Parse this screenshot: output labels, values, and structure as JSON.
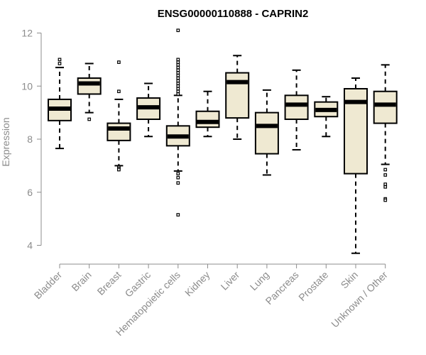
{
  "chart_data": {
    "type": "boxplot",
    "title": "ENSG00000110888 - CAPRIN2",
    "xlabel": "",
    "ylabel": "Expression",
    "ylim": [
      3.6,
      12.3
    ],
    "yticks": [
      4,
      6,
      8,
      10,
      12
    ],
    "categories": [
      "Bladder",
      "Brain",
      "Breast",
      "Gastric",
      "Hematopoietic cells",
      "Kidney",
      "Liver",
      "Lung",
      "Pancreas",
      "Prostate",
      "Skin",
      "Unknown / Other"
    ],
    "boxes": [
      {
        "category": "Bladder",
        "whisker_low": 7.65,
        "q1": 8.7,
        "median": 9.15,
        "q3": 9.5,
        "whisker_high": 10.7,
        "outliers": [
          10.85,
          11.0
        ]
      },
      {
        "category": "Brain",
        "whisker_low": 9.0,
        "q1": 9.7,
        "median": 10.1,
        "q3": 10.3,
        "whisker_high": 10.85,
        "outliers": [
          8.75
        ]
      },
      {
        "category": "Breast",
        "whisker_low": 7.0,
        "q1": 7.95,
        "median": 8.4,
        "q3": 8.6,
        "whisker_high": 9.5,
        "outliers": [
          10.9,
          9.8,
          6.95,
          6.9,
          6.85
        ]
      },
      {
        "category": "Gastric",
        "whisker_low": 8.1,
        "q1": 8.75,
        "median": 9.2,
        "q3": 9.55,
        "whisker_high": 10.1,
        "outliers": []
      },
      {
        "category": "Hematopoietic cells",
        "whisker_low": 6.8,
        "q1": 7.75,
        "median": 8.1,
        "q3": 8.5,
        "whisker_high": 9.65,
        "outliers": [
          12.1,
          11.0,
          10.9,
          10.8,
          10.7,
          10.6,
          10.5,
          10.4,
          10.3,
          10.2,
          10.1,
          10.0,
          9.9,
          9.8,
          9.7,
          6.7,
          6.55,
          6.35,
          5.15
        ]
      },
      {
        "category": "Kidney",
        "whisker_low": 8.1,
        "q1": 8.45,
        "median": 8.65,
        "q3": 9.05,
        "whisker_high": 9.8,
        "outliers": []
      },
      {
        "category": "Liver",
        "whisker_low": 8.0,
        "q1": 8.8,
        "median": 10.15,
        "q3": 10.5,
        "whisker_high": 11.15,
        "outliers": []
      },
      {
        "category": "Lung",
        "whisker_low": 6.65,
        "q1": 7.45,
        "median": 8.5,
        "q3": 9.0,
        "whisker_high": 9.85,
        "outliers": []
      },
      {
        "category": "Pancreas",
        "whisker_low": 7.6,
        "q1": 8.75,
        "median": 9.3,
        "q3": 9.65,
        "whisker_high": 10.6,
        "outliers": []
      },
      {
        "category": "Prostate",
        "whisker_low": 8.1,
        "q1": 8.85,
        "median": 9.1,
        "q3": 9.4,
        "whisker_high": 9.6,
        "outliers": []
      },
      {
        "category": "Skin",
        "whisker_low": 3.7,
        "q1": 6.7,
        "median": 9.4,
        "q3": 9.9,
        "whisker_high": 10.3,
        "outliers": []
      },
      {
        "category": "Unknown / Other",
        "whisker_low": 7.05,
        "q1": 8.6,
        "median": 9.3,
        "q3": 9.8,
        "whisker_high": 10.8,
        "outliers": [
          6.85,
          6.65,
          6.3,
          6.2,
          5.75,
          5.7
        ]
      }
    ],
    "colors": {
      "box_fill": "#efe9d2",
      "box_stroke": "#000000",
      "axis": "#8c8c8c",
      "tick_label": "#8c8c8c",
      "title": "#000000"
    },
    "grid": false,
    "legend": "none"
  }
}
